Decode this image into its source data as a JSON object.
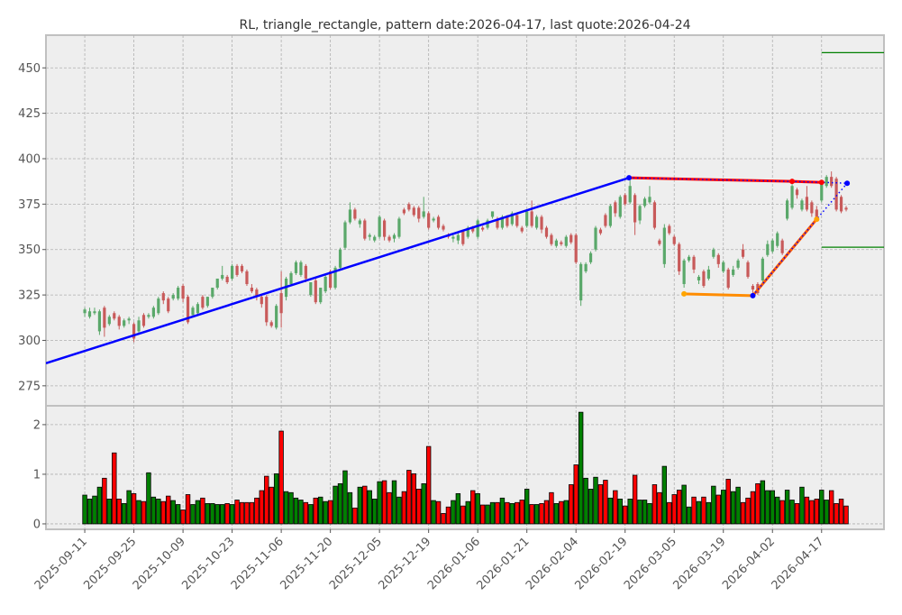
{
  "chart_data": {
    "type": "candlestick+volume",
    "title": "RL, triangle_rectangle, pattern date:2026-04-17, last quote:2026-04-24",
    "price_axis": {
      "ylim": [
        264,
        468
      ],
      "ticks": [
        275,
        300,
        325,
        350,
        375,
        400,
        425,
        450
      ]
    },
    "volume_axis": {
      "ylim": [
        -0.11,
        2.38
      ],
      "ticks": [
        0,
        1,
        2
      ]
    },
    "x_axis": {
      "xlim": [
        -7.9,
        162.7
      ],
      "ticks": [
        {
          "index": 0,
          "label": "2025-09-11"
        },
        {
          "index": 10,
          "label": "2025-09-25"
        },
        {
          "index": 20,
          "label": "2025-10-09"
        },
        {
          "index": 30,
          "label": "2025-10-23"
        },
        {
          "index": 40,
          "label": "2025-11-06"
        },
        {
          "index": 50,
          "label": "2025-11-20"
        },
        {
          "index": 60,
          "label": "2025-12-05"
        },
        {
          "index": 70,
          "label": "2025-12-19"
        },
        {
          "index": 80,
          "label": "2026-01-06"
        },
        {
          "index": 90,
          "label": "2026-01-21"
        },
        {
          "index": 100,
          "label": "2026-02-04"
        },
        {
          "index": 110,
          "label": "2026-02-19"
        },
        {
          "index": 120,
          "label": "2026-03-05"
        },
        {
          "index": 130,
          "label": "2026-03-19"
        },
        {
          "index": 140,
          "label": "2026-04-02"
        },
        {
          "index": 150,
          "label": "2026-04-17"
        }
      ]
    },
    "grid": true,
    "colors": {
      "up_candle": "#5aa86a",
      "down_candle": "#c85a5a",
      "up_volume": "#008000",
      "down_volume": "#ff0000",
      "background": "#eeeeee"
    },
    "ohlc": [
      [
        315,
        318,
        313,
        317
      ],
      [
        313,
        318,
        312,
        316
      ],
      [
        315,
        318,
        314,
        316
      ],
      [
        305,
        317,
        303,
        316
      ],
      [
        318,
        319,
        302,
        307
      ],
      [
        309,
        314,
        308,
        313
      ],
      [
        315,
        316,
        311,
        312
      ],
      [
        313,
        314,
        306,
        308
      ],
      [
        308,
        312,
        307,
        311
      ],
      [
        311,
        313,
        309,
        312
      ],
      [
        309,
        310,
        299,
        301
      ],
      [
        305,
        313,
        303,
        311
      ],
      [
        314,
        315,
        307,
        308
      ],
      [
        313,
        315,
        312,
        314
      ],
      [
        313,
        319,
        312,
        318
      ],
      [
        315,
        324,
        314,
        323
      ],
      [
        326,
        327,
        320,
        322
      ],
      [
        323,
        324,
        315,
        316
      ],
      [
        323,
        326,
        322,
        325
      ],
      [
        323,
        330,
        322,
        329
      ],
      [
        330,
        331,
        321,
        323
      ],
      [
        324,
        325,
        309,
        310
      ],
      [
        314,
        319,
        313,
        318
      ],
      [
        315,
        321,
        314,
        320
      ],
      [
        324,
        325,
        317,
        318
      ],
      [
        319,
        324,
        318,
        324
      ],
      [
        324,
        329,
        323,
        329
      ],
      [
        329,
        334,
        328,
        334
      ],
      [
        334,
        341,
        333,
        336
      ],
      [
        335,
        336,
        331,
        332
      ],
      [
        334,
        342,
        333,
        341
      ],
      [
        341,
        342,
        335,
        336
      ],
      [
        341,
        342,
        337,
        338
      ],
      [
        338,
        339,
        330,
        331
      ],
      [
        329,
        331,
        326,
        327
      ],
      [
        328,
        329,
        322,
        324
      ],
      [
        324,
        325,
        318,
        320
      ],
      [
        324,
        325,
        308,
        310
      ],
      [
        310,
        311,
        307,
        308
      ],
      [
        307,
        320,
        306,
        319
      ],
      [
        326,
        338,
        307,
        315
      ],
      [
        324,
        335,
        322,
        334
      ],
      [
        331,
        338,
        330,
        337
      ],
      [
        337,
        344,
        336,
        343
      ],
      [
        336,
        344,
        335,
        343
      ],
      [
        341,
        342,
        332,
        334
      ],
      [
        325,
        332,
        324,
        332
      ],
      [
        333,
        334,
        320,
        321
      ],
      [
        321,
        329,
        320,
        329
      ],
      [
        327,
        336,
        326,
        335
      ],
      [
        338,
        339,
        328,
        329
      ],
      [
        329,
        341,
        328,
        340
      ],
      [
        340,
        351,
        339,
        350
      ],
      [
        351,
        366,
        350,
        365
      ],
      [
        365,
        376,
        364,
        372
      ],
      [
        372,
        373,
        366,
        367
      ],
      [
        364,
        367,
        362,
        366
      ],
      [
        366,
        367,
        355,
        356
      ],
      [
        357,
        359,
        355,
        358
      ],
      [
        355,
        358,
        354,
        357
      ],
      [
        357,
        369,
        356,
        368
      ],
      [
        366,
        367,
        355,
        357
      ],
      [
        357,
        358,
        354,
        355
      ],
      [
        356,
        359,
        354,
        358
      ],
      [
        357,
        368,
        356,
        367
      ],
      [
        372,
        373,
        369,
        370
      ],
      [
        375,
        376,
        371,
        372
      ],
      [
        373,
        374,
        368,
        369
      ],
      [
        373,
        374,
        365,
        367
      ],
      [
        368,
        379,
        367,
        371
      ],
      [
        370,
        371,
        361,
        362
      ],
      [
        366,
        368,
        365,
        367
      ],
      [
        368,
        369,
        361,
        362
      ],
      [
        363,
        364,
        360,
        361
      ],
      [
        358,
        359,
        356,
        357
      ],
      [
        356,
        358,
        354,
        357
      ],
      [
        355,
        359,
        353,
        358
      ],
      [
        360,
        361,
        352,
        353
      ],
      [
        357,
        363,
        356,
        362
      ],
      [
        362,
        363,
        359,
        360
      ],
      [
        357,
        367,
        356,
        366
      ],
      [
        362,
        363,
        360,
        361
      ],
      [
        362,
        367,
        361,
        366
      ],
      [
        368,
        371,
        367,
        371
      ],
      [
        367,
        368,
        361,
        362
      ],
      [
        362,
        369,
        361,
        368
      ],
      [
        368,
        369,
        362,
        363
      ],
      [
        364,
        371,
        363,
        370
      ],
      [
        369,
        370,
        362,
        363
      ],
      [
        362,
        363,
        359,
        360
      ],
      [
        363,
        372,
        362,
        371
      ],
      [
        371,
        377,
        362,
        363
      ],
      [
        362,
        369,
        361,
        368
      ],
      [
        368,
        369,
        359,
        361
      ],
      [
        362,
        363,
        356,
        357
      ],
      [
        358,
        359,
        352,
        353
      ],
      [
        352,
        356,
        351,
        355
      ],
      [
        354,
        355,
        352,
        353
      ],
      [
        352,
        358,
        351,
        357
      ],
      [
        358,
        359,
        353,
        354
      ],
      [
        358,
        359,
        342,
        343
      ],
      [
        322,
        343,
        319,
        342
      ],
      [
        338,
        343,
        337,
        342
      ],
      [
        343,
        349,
        342,
        348
      ],
      [
        350,
        363,
        349,
        362
      ],
      [
        361,
        362,
        358,
        359
      ],
      [
        369,
        370,
        362,
        363
      ],
      [
        363,
        375,
        362,
        374
      ],
      [
        376,
        377,
        368,
        370
      ],
      [
        368,
        380,
        367,
        379
      ],
      [
        380,
        381,
        374,
        375
      ],
      [
        376,
        388,
        375,
        385
      ],
      [
        380,
        381,
        358,
        365
      ],
      [
        366,
        375,
        364,
        374
      ],
      [
        374,
        379,
        373,
        378
      ],
      [
        376,
        385,
        375,
        379
      ],
      [
        376,
        377,
        361,
        362
      ],
      [
        355,
        356,
        352,
        353
      ],
      [
        342,
        364,
        340,
        362
      ],
      [
        363,
        364,
        358,
        359
      ],
      [
        357,
        358,
        352,
        353
      ],
      [
        353,
        354,
        336,
        338
      ],
      [
        331,
        345,
        329,
        344
      ],
      [
        344,
        347,
        343,
        346
      ],
      [
        346,
        347,
        337,
        339
      ],
      [
        333,
        336,
        331,
        335
      ],
      [
        338,
        339,
        329,
        330
      ],
      [
        334,
        341,
        333,
        339
      ],
      [
        346,
        351,
        345,
        350
      ],
      [
        347,
        348,
        340,
        342
      ],
      [
        338,
        344,
        337,
        343
      ],
      [
        339,
        340,
        328,
        329
      ],
      [
        336,
        341,
        335,
        339
      ],
      [
        340,
        345,
        339,
        344
      ],
      [
        350,
        353,
        345,
        346
      ],
      [
        343,
        344,
        334,
        335
      ],
      [
        330,
        331,
        326,
        328
      ],
      [
        331,
        332,
        325,
        326
      ],
      [
        333,
        346,
        332,
        345
      ],
      [
        347,
        355,
        346,
        353
      ],
      [
        349,
        356,
        348,
        355
      ],
      [
        352,
        360,
        351,
        359
      ],
      [
        355,
        356,
        347,
        348
      ],
      [
        367,
        378,
        366,
        377
      ],
      [
        373,
        386,
        372,
        385
      ],
      [
        383,
        384,
        378,
        380
      ],
      [
        372,
        378,
        371,
        377
      ],
      [
        379,
        385,
        371,
        372
      ],
      [
        376,
        377,
        368,
        370
      ],
      [
        372,
        374,
        367,
        368
      ],
      [
        377,
        387,
        376,
        386
      ],
      [
        385,
        391,
        384,
        390
      ],
      [
        390,
        393,
        384,
        385
      ],
      [
        389,
        390,
        371,
        372
      ],
      [
        379,
        380,
        370,
        371
      ],
      [
        373,
        374,
        371,
        372
      ]
    ],
    "volume": [
      0.58,
      0.5,
      0.56,
      0.74,
      0.92,
      0.5,
      1.43,
      0.5,
      0.41,
      0.67,
      0.61,
      0.47,
      0.45,
      1.03,
      0.54,
      0.5,
      0.45,
      0.56,
      0.47,
      0.39,
      0.28,
      0.59,
      0.39,
      0.47,
      0.52,
      0.41,
      0.41,
      0.39,
      0.39,
      0.41,
      0.39,
      0.48,
      0.43,
      0.43,
      0.43,
      0.52,
      0.67,
      0.96,
      0.74,
      1.01,
      1.87,
      0.65,
      0.63,
      0.52,
      0.48,
      0.43,
      0.39,
      0.52,
      0.54,
      0.45,
      0.47,
      0.76,
      0.81,
      1.07,
      0.63,
      0.32,
      0.74,
      0.76,
      0.67,
      0.5,
      0.85,
      0.87,
      0.63,
      0.87,
      0.54,
      0.65,
      1.08,
      1.01,
      0.7,
      0.81,
      1.56,
      0.47,
      0.45,
      0.21,
      0.34,
      0.47,
      0.61,
      0.36,
      0.45,
      0.67,
      0.61,
      0.38,
      0.38,
      0.43,
      0.43,
      0.52,
      0.43,
      0.41,
      0.43,
      0.48,
      0.7,
      0.39,
      0.39,
      0.41,
      0.47,
      0.63,
      0.41,
      0.45,
      0.47,
      0.79,
      1.19,
      2.25,
      0.92,
      0.7,
      0.94,
      0.79,
      0.88,
      0.52,
      0.67,
      0.5,
      0.36,
      0.5,
      0.98,
      0.48,
      0.48,
      0.41,
      0.79,
      0.63,
      1.16,
      0.43,
      0.59,
      0.68,
      0.78,
      0.34,
      0.54,
      0.45,
      0.54,
      0.43,
      0.76,
      0.58,
      0.68,
      0.9,
      0.65,
      0.74,
      0.43,
      0.52,
      0.65,
      0.81,
      0.87,
      0.67,
      0.67,
      0.54,
      0.47,
      0.68,
      0.48,
      0.41,
      0.74,
      0.54,
      0.47,
      0.5,
      0.68,
      0.48,
      0.67,
      0.41,
      0.5,
      0.36
    ],
    "pattern_lines": [
      {
        "name": "trend-line",
        "color": "#0000ff",
        "style": "solid",
        "points": [
          [
            -7.9,
            287.4
          ],
          [
            110.8,
            389.5
          ]
        ]
      },
      {
        "name": "resistance-line",
        "color": "#ff0000",
        "style": "solid",
        "points": [
          [
            110.8,
            389.5
          ],
          [
            144,
            387.5
          ],
          [
            150,
            387
          ]
        ]
      },
      {
        "name": "resistance-overlay",
        "color": "#0000ff",
        "style": "dotted",
        "points": [
          [
            110.8,
            389.5
          ],
          [
            144,
            387.5
          ],
          [
            150,
            387
          ],
          [
            155.2,
            386.5
          ]
        ]
      },
      {
        "name": "support-line",
        "color": "#ff8c00",
        "style": "solid",
        "points": [
          [
            122,
            325.6
          ],
          [
            136,
            324.6
          ]
        ]
      },
      {
        "name": "rising-line",
        "color": "#ff5a00",
        "style": "solid",
        "points": [
          [
            136,
            324.6
          ],
          [
            149,
            366.7
          ]
        ]
      },
      {
        "name": "rising-overlay",
        "color": "#0000ff",
        "style": "dotted",
        "points": [
          [
            136,
            324.6
          ],
          [
            149,
            366.7
          ],
          [
            155.2,
            386.5
          ]
        ]
      },
      {
        "name": "target-high-line",
        "color": "#008000",
        "style": "solid",
        "points": [
          [
            150,
            458.4
          ],
          [
            162.7,
            458.4
          ]
        ]
      },
      {
        "name": "target-low-line",
        "color": "#008000",
        "style": "solid",
        "points": [
          [
            150,
            351.3
          ],
          [
            162.7,
            351.3
          ]
        ]
      }
    ],
    "pattern_points": [
      {
        "color": "#0000ff",
        "point": [
          110.8,
          389.5
        ]
      },
      {
        "color": "#0000ff",
        "point": [
          136,
          324.6
        ]
      },
      {
        "color": "#0000ff",
        "point": [
          155.2,
          386.5
        ]
      },
      {
        "color": "#ff0000",
        "point": [
          144,
          387.5
        ]
      },
      {
        "color": "#ff0000",
        "point": [
          150,
          387
        ]
      },
      {
        "color": "#ffa500",
        "point": [
          122,
          325.6
        ]
      },
      {
        "color": "#ffa500",
        "point": [
          149,
          366.7
        ]
      }
    ]
  }
}
